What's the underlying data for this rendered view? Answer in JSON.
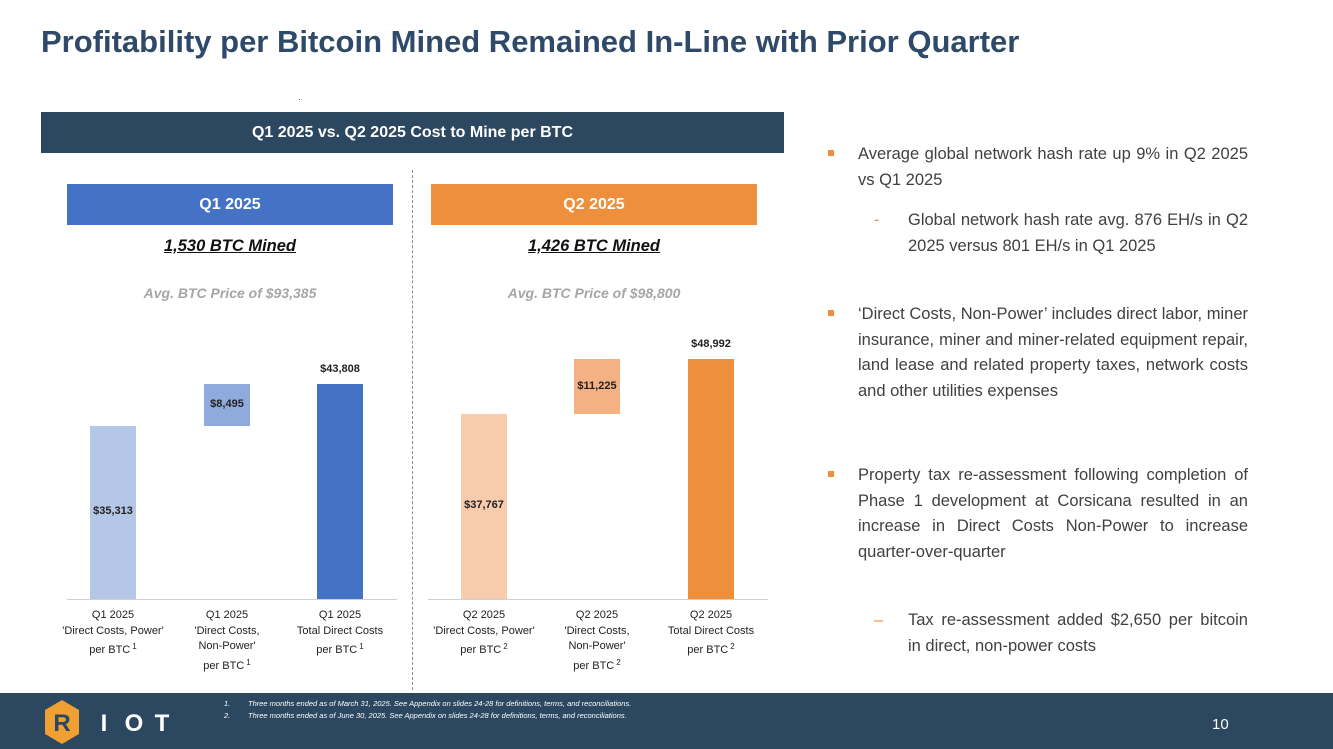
{
  "title": "Profitability per Bitcoin Mined Remained In-Line with Prior Quarter",
  "section_header": "Q1 2025 vs. Q2 2025 Cost to Mine per BTC",
  "panels": [
    {
      "header": "Q1 2025",
      "mined": "1,530 BTC Mined",
      "avg_price": "Avg. BTC Price of $93,385"
    },
    {
      "header": "Q2 2025",
      "mined": "1,426 BTC Mined",
      "avg_price": "Avg. BTC Price of $98,800"
    }
  ],
  "chart_data": [
    {
      "type": "bar",
      "subtype": "waterfall",
      "title": "Q1 2025",
      "categories": [
        {
          "lines": [
            "Q1 2025",
            "'Direct Costs, Power'",
            "per BTC"
          ],
          "footnote": "1"
        },
        {
          "lines": [
            "Q1 2025",
            "'Direct Costs,",
            "Non-Power'",
            "per BTC"
          ],
          "footnote": "1"
        },
        {
          "lines": [
            "Q1 2025",
            "Total Direct Costs",
            "per BTC"
          ],
          "footnote": "1"
        }
      ],
      "values": [
        35313,
        8495,
        43808
      ],
      "value_labels": [
        "$35,313",
        "$8,495",
        "$43,808"
      ],
      "bases": [
        0,
        35313,
        0
      ],
      "colors": [
        "#b4c7e7",
        "#8faadc",
        "#4472c4"
      ],
      "ylim": [
        0,
        58000
      ]
    },
    {
      "type": "bar",
      "subtype": "waterfall",
      "title": "Q2 2025",
      "categories": [
        {
          "lines": [
            "Q2 2025",
            "'Direct Costs, Power'",
            "per BTC"
          ],
          "footnote": "2"
        },
        {
          "lines": [
            "Q2 2025",
            "'Direct Costs,",
            "Non-Power'",
            "per BTC"
          ],
          "footnote": "2"
        },
        {
          "lines": [
            "Q2 2025",
            "Total Direct Costs",
            "per BTC"
          ],
          "footnote": "2"
        }
      ],
      "values": [
        37767,
        11225,
        48992
      ],
      "value_labels": [
        "$37,767",
        "$11,225",
        "$48,992"
      ],
      "bases": [
        0,
        37767,
        0
      ],
      "colors": [
        "#f8cbad",
        "#f4b183",
        "#ed8f3c"
      ],
      "ylim": [
        0,
        58000
      ]
    }
  ],
  "bullets": [
    {
      "level": 1,
      "text": "Average global network hash rate up 9% in Q2 2025 vs Q1 2025"
    },
    {
      "level": 2,
      "marker": "-",
      "text": "Global network hash rate avg. 876 EH/s in Q2 2025 versus 801 EH/s in Q1 2025"
    },
    {
      "level": 1,
      "text": "‘Direct Costs, Non-Power’ includes direct labor, miner insurance, miner and miner-related equipment repair, land lease and related property taxes, network costs and other utilities expenses"
    },
    {
      "level": 1,
      "text": "Property tax re-assessment following completion of Phase 1 development at Corsicana resulted in an increase in Direct Costs Non-Power to increase quarter-over-quarter"
    },
    {
      "level": 2,
      "marker": "–",
      "text": "Tax re-assessment added $2,650 per bitcoin in direct, non-power costs"
    }
  ],
  "footnotes": [
    {
      "num": "1.",
      "text": "Three months ended as of March 31, 2025. See Appendix on slides 24-28 for definitions, terms, and reconciliations."
    },
    {
      "num": "2.",
      "text": "Three months ended as of June 30, 2025. See Appendix on slides 24-28 for definitions, terms, and reconciliations."
    }
  ],
  "logo": {
    "letters": [
      "R",
      "I",
      "O",
      "T"
    ],
    "colors": {
      "hex": "#f0a033",
      "text": "#ffffff"
    }
  },
  "page_number": "10"
}
